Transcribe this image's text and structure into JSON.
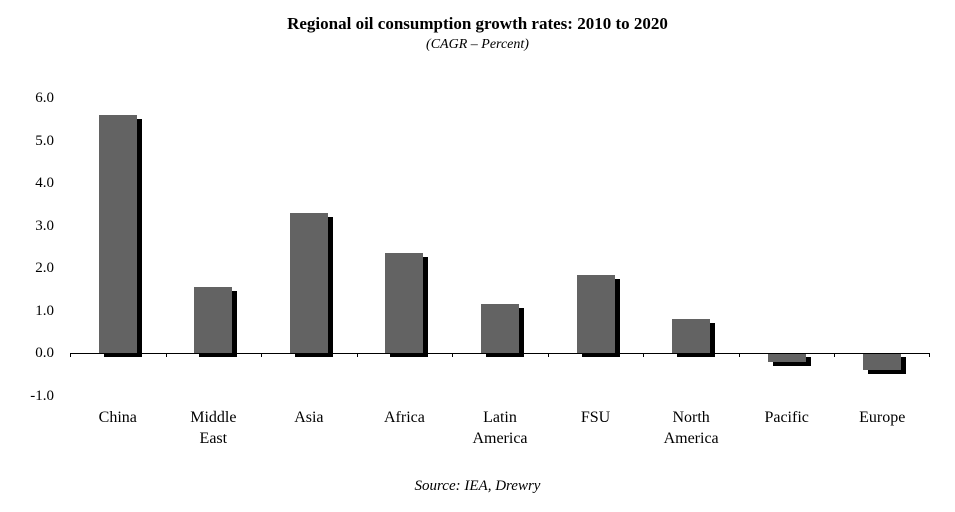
{
  "chart_data": {
    "type": "bar",
    "title": "Regional oil consumption growth rates: 2010 to 2020",
    "subtitle": "(CAGR – Percent)",
    "source": "Source: IEA, Drewry",
    "categories": [
      "China",
      "Middle East",
      "Asia",
      "Africa",
      "Latin America",
      "FSU",
      "North America",
      "Pacific",
      "Europe"
    ],
    "values": [
      5.6,
      1.55,
      3.3,
      2.35,
      1.15,
      1.85,
      0.8,
      -0.2,
      -0.4
    ],
    "xlabel": "",
    "ylabel": "",
    "ylim": [
      -1.0,
      6.0
    ],
    "yticks": [
      6.0,
      5.0,
      4.0,
      3.0,
      2.0,
      1.0,
      0.0,
      -1.0
    ],
    "ytick_labels": [
      "6.0",
      "5.0",
      "4.0",
      "3.0",
      "2.0",
      "1.0",
      "0.0",
      "-1.0"
    ],
    "grid": false,
    "legend": "none",
    "bar_color": "#636363",
    "shadow_color": "#000000"
  }
}
